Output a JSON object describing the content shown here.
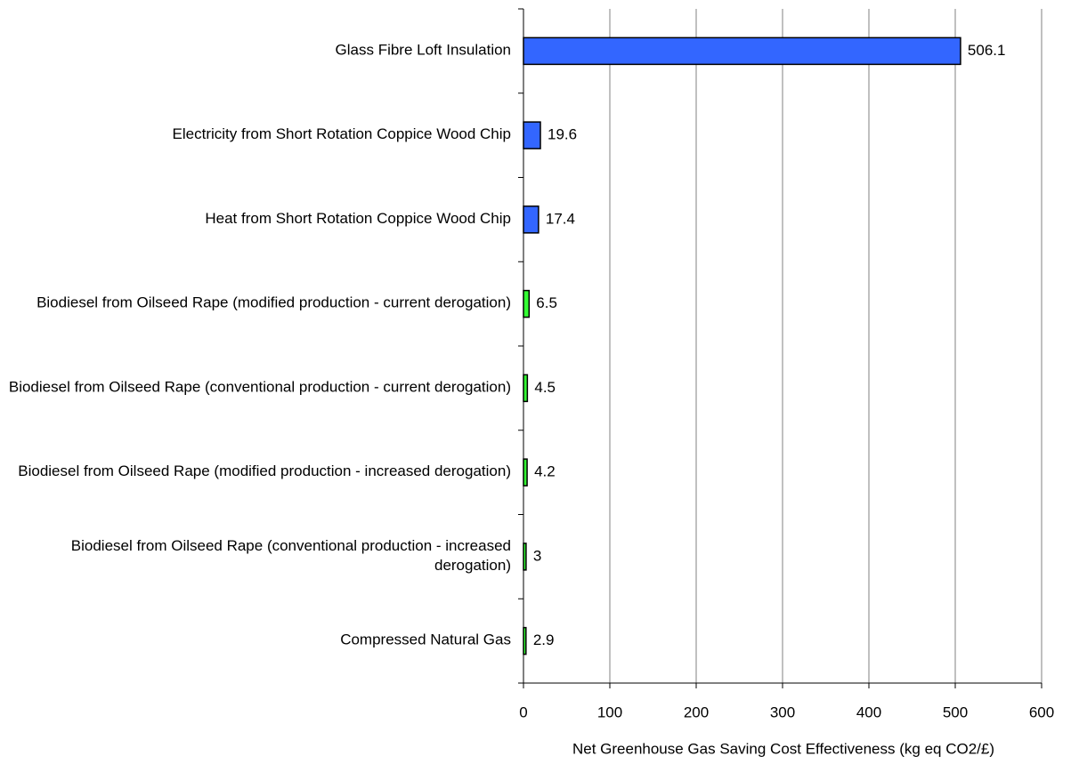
{
  "chart_data": {
    "type": "bar",
    "orientation": "horizontal",
    "categories": [
      "Glass Fibre Loft Insulation",
      "Electricity from Short Rotation Coppice Wood Chip",
      "Heat from Short Rotation Coppice Wood Chip",
      "Biodiesel from Oilseed Rape (modified production - current derogation)",
      "Biodiesel from Oilseed Rape (conventional production - current derogation)",
      "Biodiesel from Oilseed Rape (modified production - increased derogation)",
      "Biodiesel from Oilseed Rape (conventional production - increased derogation)",
      "Compressed Natural Gas"
    ],
    "values": [
      506.1,
      19.6,
      17.4,
      6.5,
      4.5,
      4.2,
      3,
      2.9
    ],
    "colors": [
      "#3366ff",
      "#3366ff",
      "#3366ff",
      "#33ff33",
      "#33ff33",
      "#33ff33",
      "#33ff33",
      "#33ff33"
    ],
    "xlabel": "Net Greenhouse Gas Saving Cost Effectiveness (kg eq CO2/£)",
    "xlim": [
      0,
      600
    ],
    "xticks": [
      0,
      100,
      200,
      300,
      400,
      500,
      600
    ],
    "grid": true
  }
}
